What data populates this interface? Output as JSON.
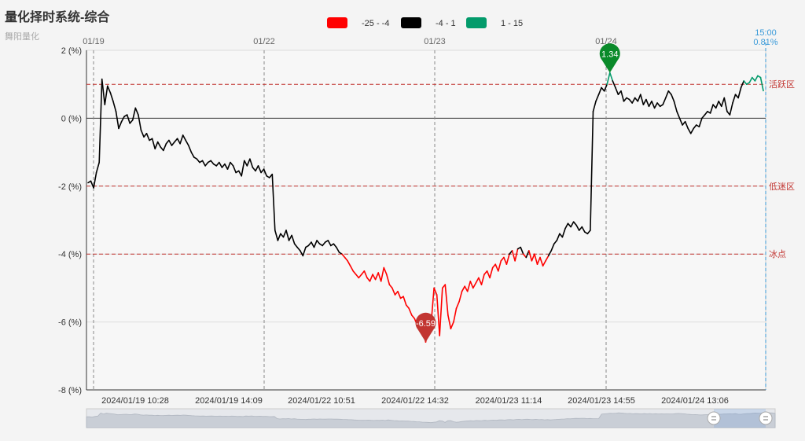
{
  "title": "量化择时系统-综合",
  "subtitle": "舞阳量化",
  "colors": {
    "low": "#ff0000",
    "mid": "#000000",
    "high": "#039b6b",
    "zone_line": "#c23531",
    "marker_min": "#c23531",
    "marker_max": "#0a8a2a",
    "current": "#3a9ad9"
  },
  "chart_data": {
    "type": "line",
    "title": "量化择时系统-综合",
    "legend": {
      "position": "top-center",
      "items": [
        {
          "label": "-25 - -4",
          "min": -25,
          "max": -4,
          "color": "#ff0000"
        },
        {
          "label": "-4 - 1",
          "min": -4,
          "max": 1,
          "color": "#000000"
        },
        {
          "label": "1 - 15",
          "min": 1,
          "max": 15,
          "color": "#039b6b"
        }
      ]
    },
    "y_axis": {
      "min": -8,
      "max": 2,
      "interval": 2,
      "ticks": [
        "2 (%)",
        "0 (%)",
        "-2 (%)",
        "-4 (%)",
        "-6 (%)",
        "-8 (%)"
      ],
      "grid": true
    },
    "x_axis_labels": [
      "2024/01/19 10:28",
      "2024/01/19 14:09",
      "2024/01/22 10:51",
      "2024/01/22 14:32",
      "2024/01/23 11:14",
      "2024/01/23 14:55",
      "2024/01/24 13:06"
    ],
    "day_markers": [
      "01/19",
      "01/22",
      "01/23",
      "01/24"
    ],
    "current": {
      "time": "15:00",
      "value": "0.81%"
    },
    "zones": [
      {
        "label": "活跃区",
        "value": 1
      },
      {
        "label": "低迷区",
        "value": -2
      },
      {
        "label": "冰点",
        "value": -4
      }
    ],
    "markers": [
      {
        "label": "-6.59",
        "value": -6.59,
        "type": "min"
      },
      {
        "label": "1.34",
        "value": 1.34,
        "type": "max"
      }
    ],
    "series": [
      {
        "values": [
          -1.9,
          -1.85,
          -2.05,
          -1.6,
          -1.3,
          1.15,
          0.4,
          0.95,
          0.75,
          0.5,
          0.2,
          -0.3,
          -0.1,
          0.05,
          0.1,
          -0.15,
          -0.05,
          0.3,
          0.1,
          -0.35,
          -0.55,
          -0.45,
          -0.65,
          -0.6,
          -0.9,
          -0.7,
          -0.85,
          -0.95,
          -0.75,
          -0.65,
          -0.8,
          -0.7,
          -0.6,
          -0.75,
          -0.5,
          -0.65,
          -0.8,
          -1.0,
          -1.15,
          -1.2,
          -1.3,
          -1.25,
          -1.4,
          -1.3,
          -1.25,
          -1.35,
          -1.4,
          -1.3,
          -1.45,
          -1.35,
          -1.5,
          -1.3,
          -1.4,
          -1.6,
          -1.55,
          -1.7,
          -1.25,
          -1.4,
          -1.2,
          -1.45,
          -1.55,
          -1.4,
          -1.6,
          -1.5,
          -1.7,
          -1.75,
          -1.65,
          -3.3,
          -3.6,
          -3.4,
          -3.5,
          -3.3,
          -3.6,
          -3.45,
          -3.7,
          -3.8,
          -3.9,
          -4.05,
          -3.8,
          -3.75,
          -3.65,
          -3.8,
          -3.6,
          -3.7,
          -3.75,
          -3.65,
          -3.6,
          -3.75,
          -3.7,
          -3.8,
          -3.95,
          -4.0,
          -4.1,
          -4.2,
          -4.35,
          -4.5,
          -4.6,
          -4.7,
          -4.6,
          -4.5,
          -4.7,
          -4.8,
          -4.6,
          -4.75,
          -4.55,
          -4.8,
          -4.4,
          -4.6,
          -4.9,
          -5.0,
          -5.2,
          -5.1,
          -5.3,
          -5.25,
          -5.5,
          -5.6,
          -5.8,
          -5.9,
          -6.1,
          -6.2,
          -6.3,
          -6.59,
          -6.2,
          -6.0,
          -5.0,
          -5.2,
          -6.4,
          -5.0,
          -4.9,
          -5.8,
          -6.2,
          -6.0,
          -5.6,
          -5.4,
          -5.1,
          -4.95,
          -5.1,
          -4.8,
          -5.0,
          -4.85,
          -4.7,
          -4.9,
          -4.6,
          -4.5,
          -4.7,
          -4.4,
          -4.3,
          -4.5,
          -4.2,
          -4.1,
          -4.3,
          -4.0,
          -3.9,
          -4.2,
          -3.85,
          -3.8,
          -4.0,
          -4.1,
          -3.9,
          -4.2,
          -4.0,
          -4.3,
          -4.1,
          -4.35,
          -4.2,
          -4.05,
          -3.9,
          -3.7,
          -3.6,
          -3.4,
          -3.5,
          -3.25,
          -3.1,
          -3.2,
          -3.05,
          -3.15,
          -3.3,
          -3.2,
          -3.35,
          -3.4,
          -3.3,
          0.2,
          0.5,
          0.7,
          0.9,
          0.8,
          1.0,
          1.34,
          1.1,
          0.9,
          0.7,
          0.8,
          0.5,
          0.6,
          0.55,
          0.45,
          0.6,
          0.5,
          0.7,
          0.4,
          0.55,
          0.35,
          0.5,
          0.3,
          0.45,
          0.35,
          0.4,
          0.6,
          0.8,
          0.7,
          0.5,
          0.2,
          0.0,
          -0.2,
          -0.1,
          -0.3,
          -0.45,
          -0.3,
          -0.2,
          -0.25,
          0.0,
          0.1,
          0.2,
          0.15,
          0.4,
          0.3,
          0.5,
          0.35,
          0.6,
          0.2,
          0.1,
          0.45,
          0.7,
          0.6,
          0.9,
          1.1,
          1.0,
          1.05,
          1.2,
          1.1,
          1.25,
          1.2,
          0.81
        ]
      }
    ]
  }
}
